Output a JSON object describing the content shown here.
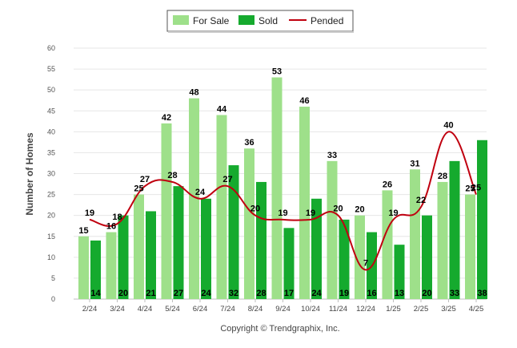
{
  "chart_data": {
    "type": "bar",
    "categories": [
      "2/24",
      "3/24",
      "4/24",
      "5/24",
      "6/24",
      "7/24",
      "8/24",
      "9/24",
      "10/24",
      "11/24",
      "12/24",
      "1/25",
      "2/25",
      "3/25",
      "4/25"
    ],
    "series": [
      {
        "name": "For Sale",
        "type": "bar",
        "color": "#9ee08a",
        "values": [
          15,
          16,
          25,
          42,
          48,
          44,
          36,
          53,
          46,
          33,
          20,
          26,
          31,
          28,
          25
        ]
      },
      {
        "name": "Sold",
        "type": "bar",
        "color": "#15aa2e",
        "values": [
          14,
          20,
          21,
          27,
          24,
          32,
          28,
          17,
          24,
          19,
          16,
          13,
          20,
          33,
          38
        ]
      },
      {
        "name": "Pended",
        "type": "line",
        "color": "#c0000f",
        "values": [
          19,
          18,
          27,
          28,
          24,
          27,
          20,
          19,
          19,
          20,
          7,
          19,
          22,
          40,
          25
        ]
      }
    ],
    "ylabel": "Number of Homes",
    "ylim": [
      0,
      60
    ],
    "yticks": [
      0,
      5,
      10,
      15,
      20,
      25,
      30,
      35,
      40,
      45,
      50,
      55,
      60
    ],
    "grid": true,
    "legend": "top-center"
  },
  "footer": {
    "copyright": "Copyright © Trendgraphix, Inc."
  }
}
